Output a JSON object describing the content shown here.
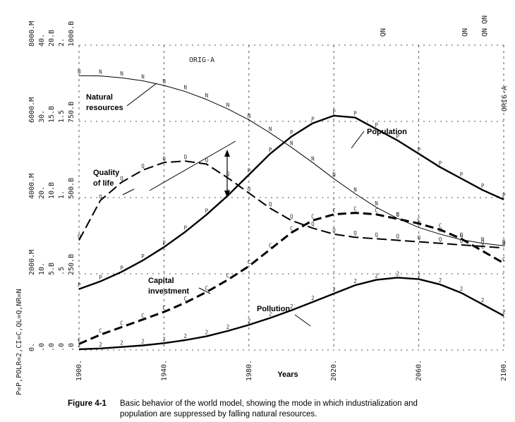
{
  "chart_data": {
    "type": "line",
    "xlabel": "Years",
    "xlim": [
      1900,
      2100
    ],
    "x_ticks": [
      "1900.",
      "1940.",
      "1980.",
      "2020.",
      "2060.",
      "2100."
    ],
    "orig_label": "ORIG-A",
    "left_key": "P=P,POLR=2,CI=C,QL=Q,NR=N",
    "scales": [
      {
        "series": "P",
        "ticks": [
          "0.",
          "2000.M",
          "4000.M",
          "6000.M",
          "8000.M"
        ]
      },
      {
        "series": "POLR",
        "ticks": [
          ".0",
          "10.",
          "20.",
          "30.",
          "40."
        ]
      },
      {
        "series": "CI",
        "ticks": [
          ".0",
          "5.B",
          "10.B",
          "15.B",
          "20.B"
        ]
      },
      {
        "series": "QL",
        "ticks": [
          ".0",
          ".5",
          "1.",
          "1.5",
          "2."
        ]
      },
      {
        "series": "NR",
        "ticks": [
          ".0",
          "250.B",
          "500.B",
          "750.B",
          "1000.B"
        ]
      }
    ],
    "top_right_marks": [
      "QN",
      "QN",
      "QN QN"
    ],
    "series": [
      {
        "name": "Natural resources",
        "symbol": "N",
        "style": "thin",
        "x": [
          1900,
          1910,
          1920,
          1930,
          1940,
          1950,
          1960,
          1970,
          1980,
          1990,
          2000,
          2010,
          2020,
          2030,
          2040,
          2050,
          2060,
          2070,
          2080,
          2090,
          2100
        ],
        "y": [
          900,
          899,
          893,
          883,
          868,
          848,
          822,
          791,
          755,
          712,
          665,
          615,
          562,
          513,
          468,
          432,
          402,
          380,
          362,
          350,
          342
        ]
      },
      {
        "name": "Population",
        "symbol": "P",
        "style": "thick",
        "x": [
          1900,
          1910,
          1920,
          1930,
          1940,
          1950,
          1960,
          1970,
          1980,
          1990,
          2000,
          2010,
          2020,
          2030,
          2040,
          2050,
          2060,
          2070,
          2080,
          2090,
          2100
        ],
        "y": [
          1600,
          1800,
          2050,
          2350,
          2700,
          3100,
          3550,
          4050,
          4600,
          5150,
          5600,
          5950,
          6150,
          6100,
          5800,
          5500,
          5150,
          4800,
          4500,
          4200,
          3950
        ]
      },
      {
        "name": "Quality of life",
        "symbol": "Q",
        "style": "dashed",
        "x": [
          1900,
          1910,
          1920,
          1930,
          1940,
          1950,
          1960,
          1970,
          1980,
          1990,
          2000,
          2010,
          2020,
          2030,
          2040,
          2050,
          2060,
          2070,
          2080,
          2090,
          2100
        ],
        "y": [
          0.72,
          0.98,
          1.1,
          1.18,
          1.23,
          1.24,
          1.22,
          1.13,
          1.03,
          0.93,
          0.85,
          0.8,
          0.76,
          0.74,
          0.73,
          0.72,
          0.71,
          0.7,
          0.69,
          0.68,
          0.67
        ]
      },
      {
        "name": "Capital investment",
        "symbol": "C",
        "style": "bold-dashed",
        "x": [
          1900,
          1910,
          1920,
          1930,
          1940,
          1950,
          1960,
          1970,
          1980,
          1990,
          2000,
          2010,
          2020,
          2030,
          2040,
          2050,
          2060,
          2070,
          2080,
          2090,
          2100
        ],
        "y": [
          0.4,
          1.0,
          1.5,
          2.0,
          2.5,
          3.1,
          3.8,
          4.6,
          5.5,
          6.6,
          7.7,
          8.5,
          8.9,
          9.0,
          8.9,
          8.6,
          8.3,
          7.9,
          7.3,
          6.5,
          5.7
        ]
      },
      {
        "name": "Pollution",
        "symbol": "2",
        "style": "thick",
        "x": [
          1900,
          1910,
          1920,
          1930,
          1940,
          1950,
          1960,
          1970,
          1980,
          1990,
          2000,
          2010,
          2020,
          2030,
          2040,
          2050,
          2060,
          2070,
          2080,
          2090,
          2100
        ],
        "y": [
          0.1,
          0.2,
          0.4,
          0.6,
          0.9,
          1.3,
          1.8,
          2.5,
          3.3,
          4.2,
          5.2,
          6.3,
          7.4,
          8.5,
          9.2,
          9.5,
          9.3,
          8.6,
          7.5,
          6.0,
          4.5
        ]
      }
    ],
    "annotations": {
      "natural_resources": "Natural\nresources",
      "population": "Population",
      "quality_of_life": "Quality\nof life",
      "capital_investment": "Capital\ninvestment",
      "pollution": "Pollution"
    }
  },
  "caption": {
    "label": "Figure 4-1",
    "text_line1": "Basic behavior of the world model, showing the mode in which industrialization and",
    "text_line2": "population are suppressed by falling natural resources."
  }
}
